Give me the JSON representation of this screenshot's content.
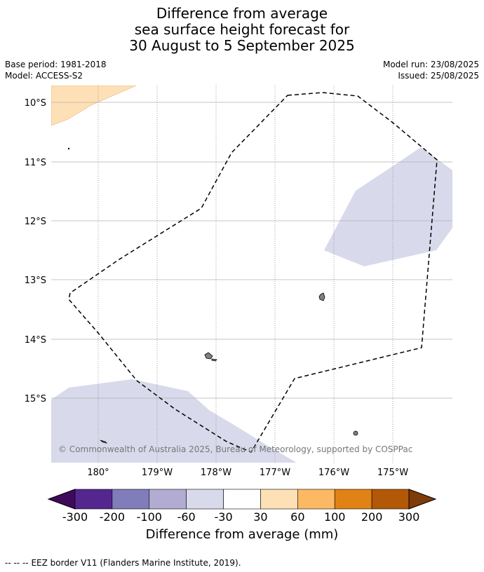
{
  "header": {
    "title_lines": [
      "Difference from average",
      "sea surface height forecast for",
      "30 August to 5 September 2025"
    ],
    "base_period": "Base period: 1981-2018",
    "model": "Model: ACCESS-S2",
    "model_run": "Model run: 23/08/2025",
    "issued": "Issued: 25/08/2025"
  },
  "map": {
    "lat_labels": [
      "10°S",
      "11°S",
      "12°S",
      "13°S",
      "14°S",
      "15°S"
    ],
    "lon_labels": [
      "180°",
      "179°W",
      "178°W",
      "177°W",
      "176°W",
      "175°W"
    ],
    "copyright": "© Commonwealth of Australia 2025, Bureau of Meteorology, supported by COSPPac"
  },
  "colorbar": {
    "ticks": [
      "-300",
      "-200",
      "-100",
      "-60",
      "-30",
      "30",
      "60",
      "100",
      "200",
      "300"
    ],
    "colors": [
      "#3f0a5c",
      "#54278f",
      "#807dba",
      "#b2abd2",
      "#d8daeb",
      "#ffffff",
      "#fee0b6",
      "#fdb863",
      "#e08214",
      "#b35806",
      "#7f3b08"
    ],
    "label": "Difference from average (mm)"
  },
  "footer": {
    "legend_symbol": "--  --  --",
    "legend_text": "EEZ border V11 (Flanders Marine Institute, 2019)."
  }
}
